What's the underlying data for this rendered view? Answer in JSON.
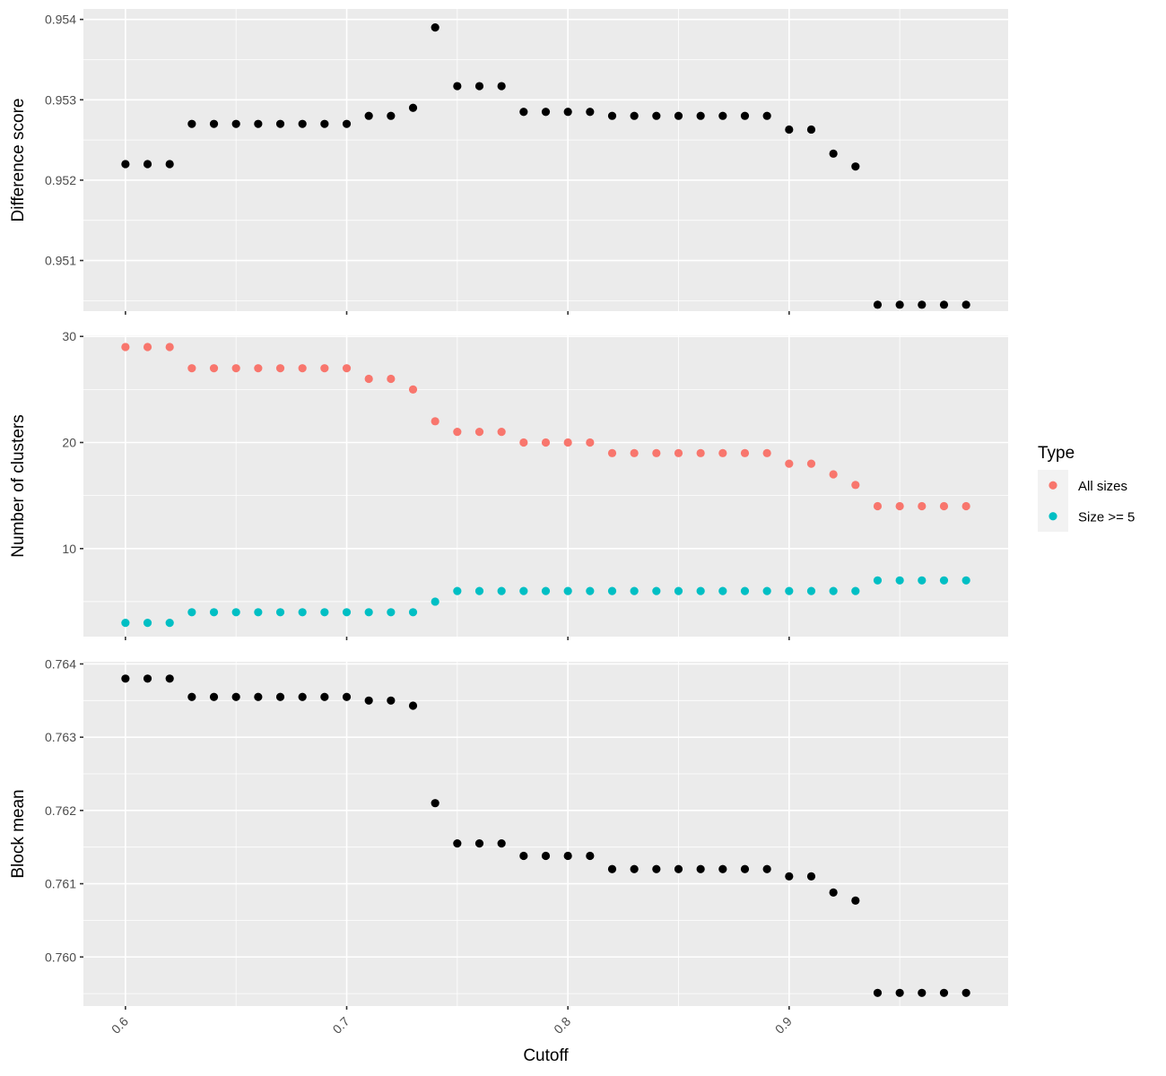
{
  "chart_data": {
    "type": "scatter",
    "xlabel": "Cutoff",
    "x_ticks": [
      "0.6",
      "0.7",
      "0.8",
      "0.9"
    ],
    "x_tick_values": [
      0.6,
      0.7,
      0.8,
      0.9
    ],
    "xlim": [
      0.581,
      0.999
    ],
    "x": [
      0.6,
      0.61,
      0.62,
      0.63,
      0.64,
      0.65,
      0.66,
      0.67,
      0.68,
      0.69,
      0.7,
      0.71,
      0.72,
      0.73,
      0.74,
      0.75,
      0.76,
      0.77,
      0.78,
      0.79,
      0.8,
      0.81,
      0.82,
      0.83,
      0.84,
      0.85,
      0.86,
      0.87,
      0.88,
      0.89,
      0.9,
      0.91,
      0.92,
      0.93,
      0.94,
      0.95,
      0.96,
      0.97,
      0.98
    ],
    "point_color": "#000000",
    "panels": [
      {
        "ylabel": "Difference score",
        "ylim": [
          0.95037,
          0.95413
        ],
        "y_ticks": [
          "0.951",
          "0.952",
          "0.953",
          "0.954"
        ],
        "y_tick_values": [
          0.951,
          0.952,
          0.953,
          0.954
        ],
        "series": [
          {
            "values": [
              0.9522,
              0.9522,
              0.9522,
              0.9527,
              0.9527,
              0.9527,
              0.9527,
              0.9527,
              0.9527,
              0.9527,
              0.9527,
              0.9528,
              0.9528,
              0.9529,
              0.9539,
              0.95317,
              0.95317,
              0.95317,
              0.95285,
              0.95285,
              0.95285,
              0.95285,
              0.9528,
              0.9528,
              0.9528,
              0.9528,
              0.9528,
              0.9528,
              0.9528,
              0.9528,
              0.95263,
              0.95263,
              0.95233,
              0.95217,
              0.95045,
              0.95045,
              0.95045,
              0.95045,
              0.95045
            ]
          }
        ]
      },
      {
        "ylabel": "Number of clusters",
        "ylim": [
          1.7,
          30.1
        ],
        "y_ticks": [
          "10",
          "20",
          "30"
        ],
        "y_tick_values": [
          10,
          20,
          30
        ],
        "series": [
          {
            "name": "All sizes",
            "color": "#f8766d",
            "values": [
              29,
              29,
              29,
              27,
              27,
              27,
              27,
              27,
              27,
              27,
              27,
              26,
              26,
              25,
              22,
              21,
              21,
              21,
              20,
              20,
              20,
              20,
              19,
              19,
              19,
              19,
              19,
              19,
              19,
              19,
              18,
              18,
              17,
              16,
              14,
              14,
              14,
              14,
              14
            ]
          },
          {
            "name": "Size >= 5",
            "color": "#00bfc4",
            "values": [
              3,
              3,
              3,
              4,
              4,
              4,
              4,
              4,
              4,
              4,
              4,
              4,
              4,
              4,
              5,
              6,
              6,
              6,
              6,
              6,
              6,
              6,
              6,
              6,
              6,
              6,
              6,
              6,
              6,
              6,
              6,
              6,
              6,
              6,
              7,
              7,
              7,
              7,
              7
            ]
          }
        ]
      },
      {
        "ylabel": "Block mean",
        "ylim": [
          0.75933,
          0.76403
        ],
        "y_ticks": [
          "0.760",
          "0.761",
          "0.762",
          "0.763",
          "0.764"
        ],
        "y_tick_values": [
          0.76,
          0.761,
          0.762,
          0.763,
          0.764
        ],
        "series": [
          {
            "values": [
              0.7638,
              0.7638,
              0.7638,
              0.76355,
              0.76355,
              0.76355,
              0.76355,
              0.76355,
              0.76355,
              0.76355,
              0.76355,
              0.7635,
              0.7635,
              0.76343,
              0.7621,
              0.76155,
              0.76155,
              0.76155,
              0.76138,
              0.76138,
              0.76138,
              0.76138,
              0.7612,
              0.7612,
              0.7612,
              0.7612,
              0.7612,
              0.7612,
              0.7612,
              0.7612,
              0.7611,
              0.7611,
              0.76088,
              0.76077,
              0.75951,
              0.75951,
              0.75951,
              0.75951,
              0.75951
            ]
          }
        ]
      }
    ],
    "legend": {
      "title": "Type",
      "placement": "right",
      "entries": [
        {
          "label": "All sizes",
          "color": "#f8766d"
        },
        {
          "label": "Size >= 5",
          "color": "#00bfc4"
        }
      ]
    },
    "grid": true
  }
}
